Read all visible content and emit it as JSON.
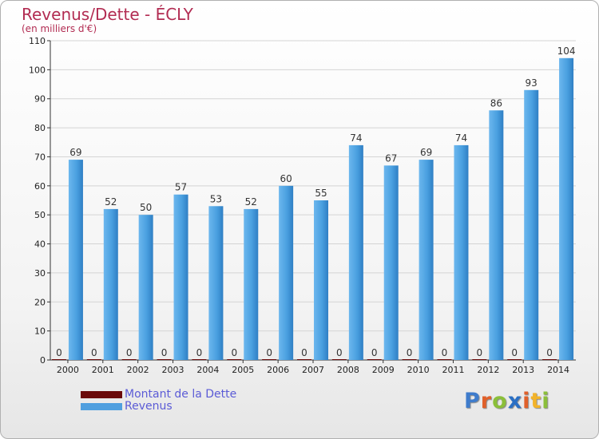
{
  "header": {
    "title": "Revenus/Dette - ÉCLY",
    "subtitle": "(en milliers d'€)"
  },
  "legend": {
    "items": [
      {
        "label": "Montant de la Dette",
        "color": "#6b0a0a",
        "text_color": "#5b5bd6"
      },
      {
        "label": "Revenus",
        "color": "#4f9fdf",
        "text_color": "#5b5bd6"
      }
    ]
  },
  "logo": {
    "letters": [
      "P",
      "r",
      "o",
      "x",
      "i",
      "t",
      "i"
    ],
    "colors": [
      "#3f7ccc",
      "#e0602a",
      "#8bbf3a",
      "#2a6fc4",
      "#e0602a",
      "#f2b32a",
      "#8bbf3a"
    ]
  },
  "chart_data": {
    "type": "bar",
    "title": "Revenus/Dette - ÉCLY",
    "subtitle": "(en milliers d'€)",
    "xlabel": "",
    "ylabel": "",
    "ylim": [
      0,
      110
    ],
    "yticks": [
      0,
      10,
      20,
      30,
      40,
      50,
      60,
      70,
      80,
      90,
      100,
      110
    ],
    "grid": true,
    "legend_position": "bottom-left",
    "categories": [
      "2000",
      "2001",
      "2002",
      "2003",
      "2004",
      "2005",
      "2006",
      "2007",
      "2008",
      "2009",
      "2010",
      "2011",
      "2012",
      "2013",
      "2014"
    ],
    "series": [
      {
        "name": "Montant de la Dette",
        "color": "#6b0a0a",
        "values": [
          0,
          0,
          0,
          0,
          0,
          0,
          0,
          0,
          0,
          0,
          0,
          0,
          0,
          0,
          0
        ]
      },
      {
        "name": "Revenus",
        "color": "#4f9fdf",
        "values": [
          69,
          52,
          50,
          57,
          53,
          52,
          60,
          55,
          74,
          67,
          69,
          74,
          86,
          93,
          104
        ]
      }
    ]
  }
}
